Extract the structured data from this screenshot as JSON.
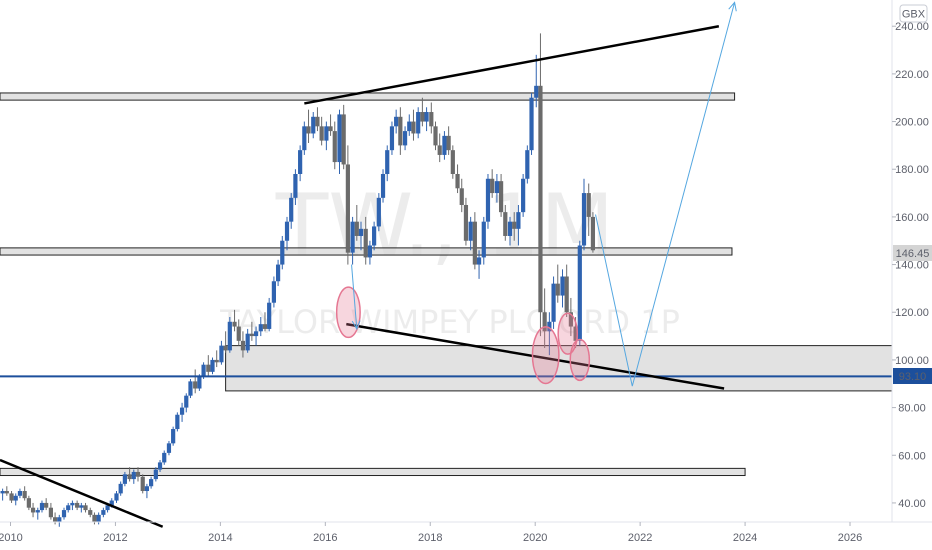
{
  "currency": "GBX",
  "watermark": {
    "symbol": "TW., 1M",
    "name": "TAYLOR WIMPEY PLC ORD 1P"
  },
  "price_labels": {
    "last": "146.45",
    "line": "93.10"
  },
  "colors": {
    "up": "#2f63b0",
    "down": "#6b6b6b",
    "trend": "#000000",
    "zone_fill": "#d8d8d8",
    "projection": "#55a7e0",
    "hline": "#1c4f9c",
    "circle": "#e57792",
    "last_label": "#d4d4d4"
  },
  "chart_data": {
    "type": "candlestick",
    "x_ticks": [
      "2010",
      "2012",
      "2014",
      "2016",
      "2018",
      "2020",
      "2022",
      "2024",
      "2026"
    ],
    "y_ticks": [
      "40.00",
      "60.00",
      "80.00",
      "100.00",
      "120.00",
      "140.00",
      "160.00",
      "180.00",
      "200.00",
      "220.00",
      "240.00"
    ],
    "xlim": [
      2009.8,
      2026.8
    ],
    "ylim": [
      32,
      251
    ],
    "candles": [
      [
        2009.85,
        44,
        46,
        41,
        45
      ],
      [
        2009.93,
        45,
        47,
        43,
        44
      ],
      [
        2010.02,
        44,
        45,
        40,
        41
      ],
      [
        2010.1,
        41,
        44,
        39,
        43
      ],
      [
        2010.18,
        43,
        46,
        42,
        45
      ],
      [
        2010.27,
        45,
        47,
        41,
        42
      ],
      [
        2010.35,
        42,
        43,
        37,
        38
      ],
      [
        2010.43,
        38,
        40,
        34,
        36
      ],
      [
        2010.52,
        36,
        38,
        33,
        37
      ],
      [
        2010.6,
        37,
        41,
        36,
        40
      ],
      [
        2010.68,
        40,
        42,
        37,
        38
      ],
      [
        2010.77,
        38,
        40,
        33,
        34
      ],
      [
        2010.85,
        34,
        36,
        31,
        32
      ],
      [
        2010.93,
        32,
        35,
        30,
        34
      ],
      [
        2011.02,
        34,
        38,
        33,
        37
      ],
      [
        2011.1,
        37,
        40,
        36,
        39
      ],
      [
        2011.18,
        39,
        41,
        37,
        40
      ],
      [
        2011.27,
        40,
        41,
        37,
        38
      ],
      [
        2011.35,
        38,
        40,
        36,
        39
      ],
      [
        2011.43,
        39,
        40,
        36,
        37
      ],
      [
        2011.52,
        37,
        38,
        34,
        35
      ],
      [
        2011.6,
        35,
        36,
        31,
        32
      ],
      [
        2011.68,
        32,
        36,
        31,
        35
      ],
      [
        2011.77,
        35,
        38,
        34,
        37
      ],
      [
        2011.85,
        37,
        40,
        36,
        39
      ],
      [
        2011.93,
        39,
        42,
        38,
        41
      ],
      [
        2012.02,
        41,
        45,
        40,
        44
      ],
      [
        2012.1,
        44,
        49,
        43,
        48
      ],
      [
        2012.18,
        48,
        53,
        47,
        52
      ],
      [
        2012.27,
        52,
        55,
        49,
        50
      ],
      [
        2012.35,
        50,
        54,
        48,
        53
      ],
      [
        2012.43,
        53,
        55,
        49,
        51
      ],
      [
        2012.52,
        51,
        52,
        44,
        45
      ],
      [
        2012.6,
        45,
        48,
        42,
        47
      ],
      [
        2012.68,
        47,
        51,
        46,
        50
      ],
      [
        2012.77,
        50,
        55,
        49,
        54
      ],
      [
        2012.85,
        54,
        58,
        53,
        57
      ],
      [
        2012.93,
        57,
        62,
        56,
        61
      ],
      [
        2013.02,
        61,
        66,
        60,
        65
      ],
      [
        2013.1,
        65,
        72,
        64,
        71
      ],
      [
        2013.18,
        71,
        78,
        70,
        77
      ],
      [
        2013.27,
        77,
        82,
        74,
        80
      ],
      [
        2013.35,
        80,
        86,
        78,
        85
      ],
      [
        2013.43,
        85,
        92,
        84,
        91
      ],
      [
        2013.52,
        91,
        96,
        86,
        88
      ],
      [
        2013.6,
        88,
        94,
        87,
        93
      ],
      [
        2013.68,
        93,
        99,
        92,
        98
      ],
      [
        2013.77,
        98,
        102,
        93,
        95
      ],
      [
        2013.85,
        95,
        101,
        94,
        100
      ],
      [
        2013.93,
        100,
        104,
        97,
        99
      ],
      [
        2014.02,
        99,
        108,
        98,
        106
      ],
      [
        2014.1,
        106,
        112,
        103,
        104
      ],
      [
        2014.18,
        104,
        118,
        103,
        116
      ],
      [
        2014.27,
        116,
        121,
        112,
        114
      ],
      [
        2014.35,
        114,
        117,
        106,
        108
      ],
      [
        2014.43,
        108,
        112,
        101,
        104
      ],
      [
        2014.52,
        104,
        113,
        103,
        111
      ],
      [
        2014.6,
        111,
        116,
        108,
        110
      ],
      [
        2014.68,
        110,
        114,
        106,
        112
      ],
      [
        2014.77,
        112,
        118,
        110,
        115
      ],
      [
        2014.85,
        115,
        120,
        112,
        113
      ],
      [
        2014.93,
        113,
        126,
        112,
        124
      ],
      [
        2015.02,
        124,
        135,
        122,
        133
      ],
      [
        2015.1,
        133,
        142,
        131,
        140
      ],
      [
        2015.18,
        140,
        152,
        138,
        150
      ],
      [
        2015.27,
        150,
        160,
        146,
        158
      ],
      [
        2015.35,
        158,
        170,
        155,
        168
      ],
      [
        2015.43,
        168,
        180,
        165,
        178
      ],
      [
        2015.52,
        178,
        190,
        175,
        188
      ],
      [
        2015.6,
        188,
        200,
        186,
        198
      ],
      [
        2015.68,
        198,
        205,
        191,
        195
      ],
      [
        2015.77,
        195,
        204,
        193,
        202
      ],
      [
        2015.85,
        202,
        206,
        196,
        198
      ],
      [
        2015.93,
        198,
        202,
        190,
        192
      ],
      [
        2016.02,
        192,
        200,
        188,
        198
      ],
      [
        2016.1,
        198,
        203,
        194,
        196
      ],
      [
        2016.18,
        196,
        200,
        180,
        183
      ],
      [
        2016.27,
        183,
        205,
        178,
        203
      ],
      [
        2016.35,
        203,
        207,
        180,
        182
      ],
      [
        2016.43,
        182,
        190,
        140,
        145
      ],
      [
        2016.52,
        145,
        160,
        140,
        158
      ],
      [
        2016.6,
        158,
        165,
        150,
        152
      ],
      [
        2016.68,
        152,
        158,
        146,
        155
      ],
      [
        2016.77,
        155,
        160,
        140,
        143
      ],
      [
        2016.85,
        143,
        150,
        140,
        148
      ],
      [
        2016.93,
        148,
        158,
        146,
        156
      ],
      [
        2017.02,
        156,
        170,
        154,
        168
      ],
      [
        2017.1,
        168,
        180,
        166,
        178
      ],
      [
        2017.18,
        178,
        190,
        175,
        188
      ],
      [
        2017.27,
        188,
        200,
        186,
        198
      ],
      [
        2017.35,
        198,
        205,
        195,
        202
      ],
      [
        2017.43,
        202,
        206,
        186,
        190
      ],
      [
        2017.52,
        190,
        198,
        188,
        196
      ],
      [
        2017.6,
        196,
        203,
        194,
        200
      ],
      [
        2017.68,
        200,
        205,
        192,
        195
      ],
      [
        2017.77,
        195,
        206,
        193,
        204
      ],
      [
        2017.85,
        204,
        210,
        198,
        200
      ],
      [
        2017.93,
        200,
        206,
        196,
        204
      ],
      [
        2018.02,
        204,
        208,
        195,
        198
      ],
      [
        2018.1,
        198,
        200,
        188,
        190
      ],
      [
        2018.18,
        190,
        195,
        183,
        186
      ],
      [
        2018.27,
        186,
        196,
        184,
        194
      ],
      [
        2018.35,
        194,
        198,
        186,
        188
      ],
      [
        2018.43,
        188,
        190,
        176,
        178
      ],
      [
        2018.52,
        178,
        182,
        170,
        172
      ],
      [
        2018.6,
        172,
        176,
        162,
        165
      ],
      [
        2018.68,
        165,
        168,
        148,
        150
      ],
      [
        2018.77,
        150,
        160,
        146,
        158
      ],
      [
        2018.85,
        158,
        162,
        138,
        140
      ],
      [
        2018.93,
        140,
        146,
        134,
        143
      ],
      [
        2019.02,
        143,
        160,
        140,
        158
      ],
      [
        2019.1,
        158,
        178,
        155,
        176
      ],
      [
        2019.18,
        176,
        180,
        168,
        170
      ],
      [
        2019.27,
        170,
        178,
        166,
        175
      ],
      [
        2019.35,
        175,
        178,
        160,
        162
      ],
      [
        2019.43,
        162,
        165,
        150,
        152
      ],
      [
        2019.52,
        152,
        160,
        148,
        158
      ],
      [
        2019.6,
        158,
        162,
        150,
        155
      ],
      [
        2019.68,
        155,
        165,
        148,
        162
      ],
      [
        2019.77,
        162,
        178,
        160,
        176
      ],
      [
        2019.85,
        176,
        190,
        174,
        188
      ],
      [
        2019.93,
        188,
        212,
        186,
        210
      ],
      [
        2020.02,
        210,
        228,
        206,
        215
      ],
      [
        2020.1,
        215,
        237,
        110,
        120
      ],
      [
        2020.18,
        120,
        130,
        105,
        112
      ],
      [
        2020.27,
        112,
        120,
        102,
        116
      ],
      [
        2020.35,
        116,
        135,
        113,
        132
      ],
      [
        2020.43,
        132,
        140,
        124,
        127
      ],
      [
        2020.52,
        127,
        138,
        122,
        135
      ],
      [
        2020.6,
        135,
        140,
        118,
        120
      ],
      [
        2020.68,
        120,
        126,
        110,
        114
      ],
      [
        2020.77,
        114,
        118,
        105,
        108
      ],
      [
        2020.85,
        108,
        150,
        106,
        148
      ],
      [
        2020.93,
        148,
        176,
        146,
        170
      ],
      [
        2021.02,
        170,
        174,
        152,
        160
      ],
      [
        2021.1,
        160,
        162,
        145,
        146
      ]
    ],
    "annotations": {
      "resistance_trend": [
        [
          2015.6,
          207.6
        ],
        [
          2023.5,
          240
        ]
      ],
      "support_trend": [
        [
          2016.4,
          115
        ],
        [
          2023.6,
          88
        ]
      ],
      "bottom_trend": [
        [
          2009.8,
          58
        ],
        [
          2012.9,
          30
        ]
      ],
      "horizontal_line": 93.1,
      "zones": [
        [
          2009.8,
          2023.8,
          209,
          212
        ],
        [
          2009.8,
          2023.75,
          144,
          147
        ],
        [
          2014.1,
          2026.8,
          87,
          106
        ],
        [
          2009.8,
          2024.0,
          51.5,
          54.5
        ]
      ],
      "projection": [
        [
          2021.15,
          161
        ],
        [
          2021.85,
          89
        ],
        [
          2023.8,
          250
        ]
      ],
      "small_arrow": [
        [
          2016.5,
          140
        ],
        [
          2016.6,
          113
        ]
      ],
      "circles": [
        [
          2016.44,
          120,
          3.2
        ],
        [
          2020.2,
          102,
          3.6
        ],
        [
          2020.62,
          111,
          2.6
        ],
        [
          2020.85,
          100,
          2.6
        ]
      ]
    }
  }
}
